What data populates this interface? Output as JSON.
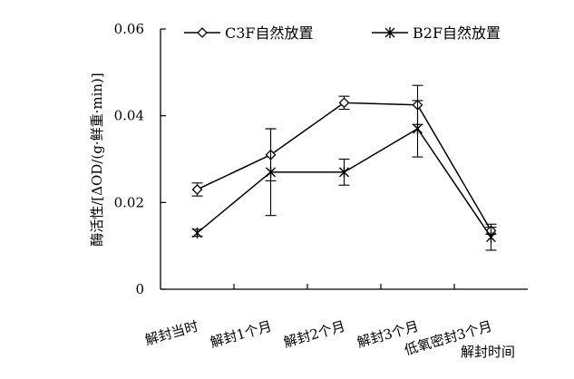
{
  "chart_data": {
    "type": "line",
    "title": "",
    "xlabel": "解封时间",
    "ylabel": "酶活性/[ΔOD/(g·鲜重·min)]",
    "ylim": [
      0,
      0.06
    ],
    "y_ticks": [
      "0",
      "0.02",
      "0.04",
      "0.06"
    ],
    "categories": [
      "解封当时",
      "解封1个月",
      "解封2个月",
      "解封3个月",
      "低氧密封3个月"
    ],
    "grid": false,
    "legend_position": "top",
    "series": [
      {
        "name": "C3F自然放置",
        "marker": "diamond",
        "values": [
          0.023,
          0.031,
          0.043,
          0.0425,
          0.0135
        ],
        "error": [
          0.0015,
          0.006,
          0.0015,
          0.0045,
          0.0008
        ]
      },
      {
        "name": "B2F自然放置",
        "marker": "star",
        "values": [
          0.013,
          0.027,
          0.027,
          0.037,
          0.012
        ],
        "error": [
          0.0008,
          0.01,
          0.003,
          0.0065,
          0.003
        ]
      }
    ]
  }
}
